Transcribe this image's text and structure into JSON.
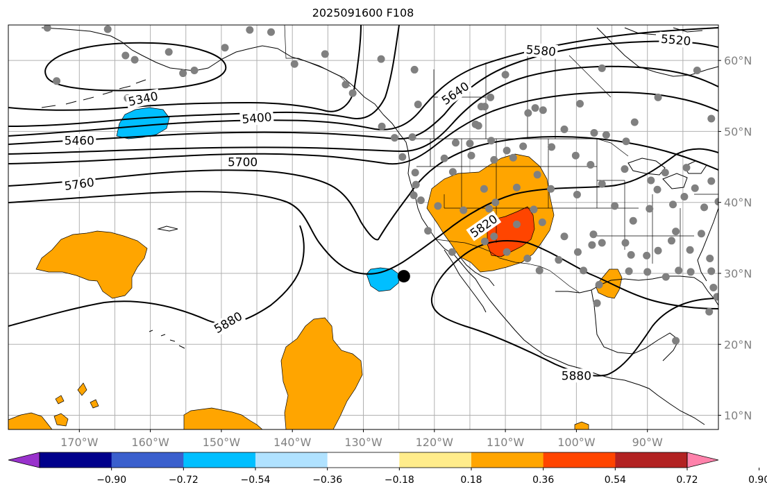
{
  "title": "2025091600 F108",
  "map": {
    "lon_range": [
      -180,
      -80
    ],
    "lat_range": [
      8,
      65
    ],
    "lat_ticks": [
      {
        "value": 10,
        "label": "10°N"
      },
      {
        "value": 20,
        "label": "20°N"
      },
      {
        "value": 30,
        "label": "30°N"
      },
      {
        "value": 40,
        "label": "40°N"
      },
      {
        "value": 50,
        "label": "50°N"
      },
      {
        "value": 60,
        "label": "60°N"
      }
    ],
    "lon_ticks": [
      {
        "value": -170,
        "label": "170°W"
      },
      {
        "value": -160,
        "label": "160°W"
      },
      {
        "value": -150,
        "label": "150°W"
      },
      {
        "value": -140,
        "label": "140°W"
      },
      {
        "value": -130,
        "label": "130°W"
      },
      {
        "value": -120,
        "label": "120°W"
      },
      {
        "value": -110,
        "label": "110°W"
      },
      {
        "value": -100,
        "label": "100°W"
      },
      {
        "value": -90,
        "label": "90°W"
      }
    ],
    "contour_labels": [
      {
        "text": "5340",
        "lon": -161,
        "lat": 54.5,
        "angle": -12
      },
      {
        "text": "5400",
        "lon": -145,
        "lat": 51.8,
        "angle": -5
      },
      {
        "text": "5460",
        "lon": -170,
        "lat": 48.6,
        "angle": 0
      },
      {
        "text": "5580",
        "lon": -105,
        "lat": 61.3,
        "angle": 5
      },
      {
        "text": "5520",
        "lon": -86,
        "lat": 62.8,
        "angle": 5
      },
      {
        "text": "5640",
        "lon": -117,
        "lat": 55.3,
        "angle": -35
      },
      {
        "text": "5700",
        "lon": -147,
        "lat": 45.6,
        "angle": 0
      },
      {
        "text": "5760",
        "lon": -170,
        "lat": 42.5,
        "angle": -8
      },
      {
        "text": "5820",
        "lon": -113,
        "lat": 36.6,
        "angle": -35
      },
      {
        "text": "5880",
        "lon": -149,
        "lat": 23.0,
        "angle": -30
      },
      {
        "text": "5880",
        "lon": -100,
        "lat": 15.5,
        "angle": 0
      }
    ],
    "marker": {
      "lon": -124.3,
      "lat": 29.6,
      "color": "#000000"
    },
    "station_color": "#808080",
    "stations": [
      [
        -174.5,
        64.6
      ],
      [
        -166,
        64.4
      ],
      [
        -163.5,
        60.7
      ],
      [
        -162.2,
        60.1
      ],
      [
        -157.4,
        61.2
      ],
      [
        -155.4,
        58.2
      ],
      [
        -153.8,
        58.6
      ],
      [
        -163.2,
        54.7
      ],
      [
        -173.2,
        57.1
      ],
      [
        -149.5,
        61.8
      ],
      [
        -146,
        64.3
      ],
      [
        -143,
        64.0
      ],
      [
        -139.7,
        59.5
      ],
      [
        -135.4,
        60.9
      ],
      [
        -132.5,
        56.6
      ],
      [
        -131.5,
        55.4
      ],
      [
        -127.5,
        60.2
      ],
      [
        -122.8,
        58.7
      ],
      [
        -122.3,
        53.8
      ],
      [
        -127.4,
        50.7
      ],
      [
        -125.6,
        49.1
      ],
      [
        -123.1,
        49.2
      ],
      [
        -124.5,
        46.4
      ],
      [
        -122.7,
        44.2
      ],
      [
        -122.9,
        41.0
      ],
      [
        -120.9,
        36.0
      ],
      [
        -117.5,
        33.0
      ],
      [
        -119.5,
        39.5
      ],
      [
        -117.0,
        48.4
      ],
      [
        -114.2,
        51.0
      ],
      [
        -112.1,
        54.8
      ],
      [
        -113.4,
        53.5
      ],
      [
        -112.9,
        53.5
      ],
      [
        -113.8,
        50.8
      ],
      [
        -112.0,
        48.7
      ],
      [
        -109.8,
        47.3
      ],
      [
        -110.0,
        58.0
      ],
      [
        -105.8,
        53.3
      ],
      [
        -106.8,
        52.6
      ],
      [
        -104.7,
        53.0
      ],
      [
        -101.7,
        50.3
      ],
      [
        -99.5,
        53.9
      ],
      [
        -96.4,
        58.9
      ],
      [
        -97.5,
        49.8
      ],
      [
        -95.8,
        49.5
      ],
      [
        -93.0,
        48.6
      ],
      [
        -91.8,
        51.3
      ],
      [
        -88.5,
        54.8
      ],
      [
        -83.0,
        58.6
      ],
      [
        -81.0,
        51.8
      ],
      [
        -107.5,
        47.9
      ],
      [
        -103.5,
        47.8
      ],
      [
        -100.1,
        46.6
      ],
      [
        -98.0,
        45.3
      ],
      [
        -93.2,
        44.7
      ],
      [
        -89.5,
        43.1
      ],
      [
        -87.5,
        44.2
      ],
      [
        -84.5,
        44.9
      ],
      [
        -81.0,
        43.0
      ],
      [
        -83.3,
        42.0
      ],
      [
        -86.4,
        39.7
      ],
      [
        -88.6,
        41.8
      ],
      [
        -89.7,
        39.1
      ],
      [
        -84.8,
        40.8
      ],
      [
        -82.0,
        39.3
      ],
      [
        -80.0,
        40.1
      ],
      [
        -92.0,
        37.4
      ],
      [
        -94.6,
        39.5
      ],
      [
        -96.4,
        42.6
      ],
      [
        -99.9,
        41.1
      ],
      [
        -103.6,
        41.9
      ],
      [
        -106.0,
        39.0
      ],
      [
        -108.9,
        46.3
      ],
      [
        -111.6,
        46.0
      ],
      [
        -113.0,
        41.9
      ],
      [
        -111.4,
        40.0
      ],
      [
        -115.9,
        38.9
      ],
      [
        -114.8,
        46.6
      ],
      [
        -112.3,
        39.1
      ],
      [
        -108.4,
        42.1
      ],
      [
        -105.5,
        43.9
      ],
      [
        -104.8,
        37.2
      ],
      [
        -108.4,
        36.9
      ],
      [
        -111.6,
        35.2
      ],
      [
        -112.9,
        34.5
      ],
      [
        -109.8,
        33.0
      ],
      [
        -106.9,
        32.1
      ],
      [
        -105.2,
        30.4
      ],
      [
        -102.5,
        31.9
      ],
      [
        -101.7,
        35.2
      ],
      [
        -97.6,
        35.5
      ],
      [
        -97.8,
        34.0
      ],
      [
        -99.8,
        33.0
      ],
      [
        -99.0,
        30.4
      ],
      [
        -97.1,
        25.8
      ],
      [
        -96.8,
        28.4
      ],
      [
        -96.4,
        34.3
      ],
      [
        -93.1,
        34.3
      ],
      [
        -92.6,
        30.3
      ],
      [
        -92.3,
        32.6
      ],
      [
        -90.1,
        32.5
      ],
      [
        -90.0,
        30.2
      ],
      [
        -88.5,
        33.2
      ],
      [
        -86.6,
        34.6
      ],
      [
        -85.6,
        30.4
      ],
      [
        -83.9,
        30.2
      ],
      [
        -84.0,
        33.3
      ],
      [
        -81.2,
        32.1
      ],
      [
        -82.4,
        35.6
      ],
      [
        -86.0,
        35.9
      ],
      [
        -80.7,
        28.0
      ],
      [
        -80.2,
        26.7
      ],
      [
        -81.3,
        24.6
      ],
      [
        -81.0,
        30.3
      ],
      [
        -87.4,
        29.5
      ],
      [
        -86.0,
        20.5
      ],
      [
        -122.6,
        42.5
      ],
      [
        -121.9,
        40.3
      ],
      [
        -117.4,
        44.3
      ],
      [
        -115.0,
        48.3
      ],
      [
        -118.6,
        46.2
      ]
    ]
  },
  "colorbar": {
    "colors": [
      "#9932CC",
      "#00008B",
      "#3A5FCD",
      "#00BFFF",
      "#B0E2FF",
      "#FFFFFF",
      "#FFEC8B",
      "#FFA500",
      "#FF4500",
      "#B22222",
      "#FF82AB"
    ],
    "ticks": [
      "−0.90",
      "−0.72",
      "−0.54",
      "−0.36",
      "−0.18",
      "0.18",
      "0.36",
      "0.54",
      "0.72",
      "0.90"
    ]
  }
}
